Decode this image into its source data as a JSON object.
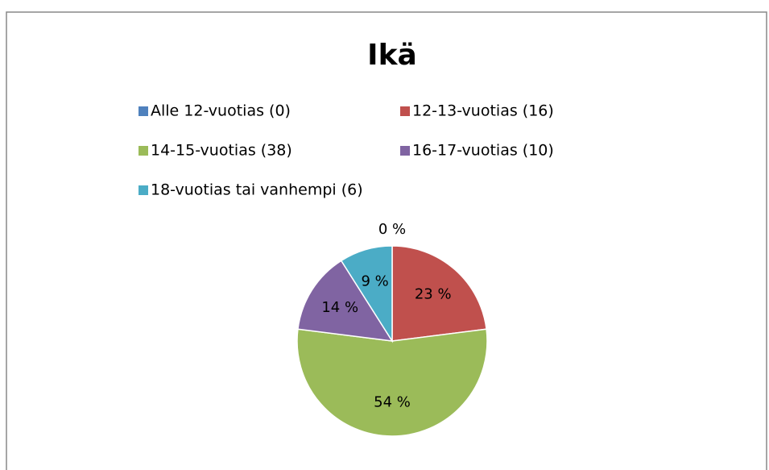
{
  "chart_data": {
    "type": "pie",
    "title": "Ikä",
    "categories": [
      "Alle 12-vuotias  (0)",
      "12-13-vuotias (16)",
      "14-15-vuotias (38)",
      "16-17-vuotias (10)",
      "18-vuotias tai vanhempi (6)"
    ],
    "values": [
      0,
      23,
      54,
      14,
      9
    ],
    "value_labels": [
      "0 %",
      "23 %",
      "54 %",
      "14 %",
      "9 %"
    ],
    "colors": [
      "#4f81bd",
      "#c0504d",
      "#9bbb59",
      "#8064a2",
      "#4bacc6"
    ]
  }
}
